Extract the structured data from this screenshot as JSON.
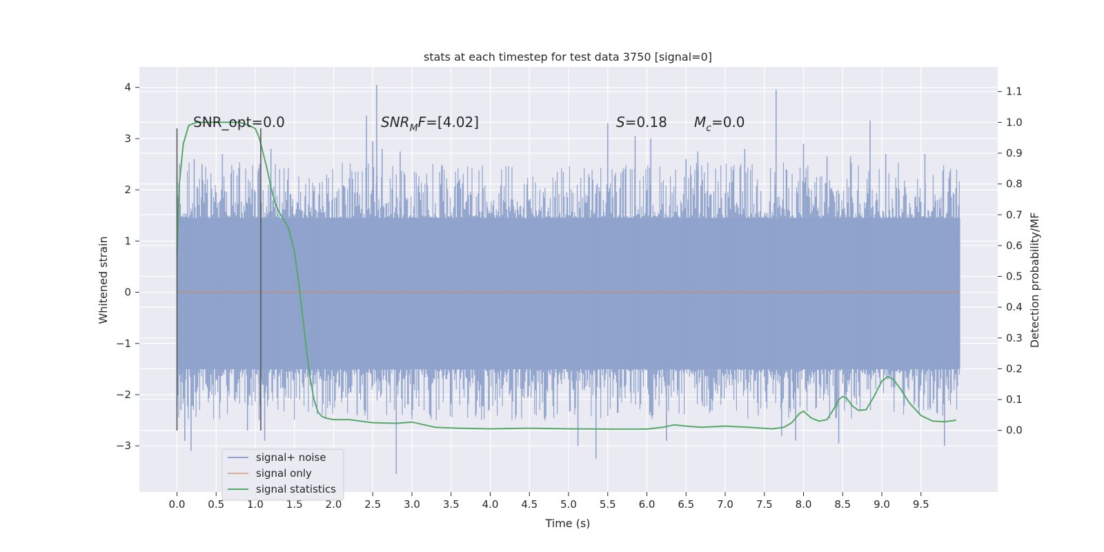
{
  "chart_data": {
    "type": "line",
    "title": "stats at each timestep for test data 3750 [signal=0]",
    "xlabel": "Time (s)",
    "ylabel": "Whitened strain",
    "y2label": "Detection probability/MF",
    "xlim": [
      -0.48,
      10.48
    ],
    "ylim": [
      -3.9,
      4.4
    ],
    "y2lim": [
      -0.2,
      1.18
    ],
    "x_ticks": [
      "0.0",
      "0.5",
      "1.0",
      "1.5",
      "2.0",
      "2.5",
      "3.0",
      "3.5",
      "4.0",
      "4.5",
      "5.0",
      "5.5",
      "6.0",
      "6.5",
      "7.0",
      "7.5",
      "8.0",
      "8.5",
      "9.0",
      "9.5"
    ],
    "y_ticks": [
      "4",
      "3",
      "2",
      "1",
      "0",
      "−1",
      "−2",
      "−3"
    ],
    "y2_ticks": [
      "1.1",
      "1.0",
      "0.9",
      "0.8",
      "0.7",
      "0.6",
      "0.5",
      "0.4",
      "0.3",
      "0.2",
      "0.1",
      "0.0"
    ],
    "grid": true,
    "legend_position": "lower-left",
    "series": [
      {
        "name": "signal+ noise",
        "color": "#8fa3cc",
        "axis": "left",
        "x_range": [
          0.0,
          10.0
        ],
        "band_typical": [
          -1.5,
          1.45
        ],
        "spikes": [
          {
            "x": 0.0,
            "y": 2.25
          },
          {
            "x": 0.05,
            "y": -2.3
          },
          {
            "x": 0.1,
            "y": -2.9
          },
          {
            "x": 0.18,
            "y": -3.1
          },
          {
            "x": 0.22,
            "y": 2.6
          },
          {
            "x": 0.32,
            "y": 2.5
          },
          {
            "x": 0.58,
            "y": 2.7
          },
          {
            "x": 0.9,
            "y": -2.7
          },
          {
            "x": 1.05,
            "y": -2.5
          },
          {
            "x": 1.2,
            "y": 2.8
          },
          {
            "x": 1.12,
            "y": -2.9
          },
          {
            "x": 2.3,
            "y": -2.4
          },
          {
            "x": 2.42,
            "y": 3.45
          },
          {
            "x": 2.5,
            "y": 2.95
          },
          {
            "x": 2.55,
            "y": 4.05
          },
          {
            "x": 2.62,
            "y": 2.8
          },
          {
            "x": 2.8,
            "y": -3.55
          },
          {
            "x": 2.85,
            "y": 2.75
          },
          {
            "x": 3.0,
            "y": -2.4
          },
          {
            "x": 4.7,
            "y": -2.5
          },
          {
            "x": 5.12,
            "y": -3.0
          },
          {
            "x": 5.35,
            "y": -3.25
          },
          {
            "x": 5.5,
            "y": 3.3
          },
          {
            "x": 5.85,
            "y": 3.05
          },
          {
            "x": 6.05,
            "y": 3.0
          },
          {
            "x": 6.25,
            "y": -2.9
          },
          {
            "x": 6.5,
            "y": 2.6
          },
          {
            "x": 6.65,
            "y": 2.75
          },
          {
            "x": 7.25,
            "y": 2.8
          },
          {
            "x": 7.65,
            "y": 3.95
          },
          {
            "x": 7.72,
            "y": -2.8
          },
          {
            "x": 7.9,
            "y": -2.9
          },
          {
            "x": 8.0,
            "y": 2.9
          },
          {
            "x": 8.3,
            "y": 2.65
          },
          {
            "x": 8.45,
            "y": -2.95
          },
          {
            "x": 8.6,
            "y": 2.65
          },
          {
            "x": 8.85,
            "y": 3.35
          },
          {
            "x": 9.05,
            "y": 2.7
          },
          {
            "x": 9.55,
            "y": 2.7
          },
          {
            "x": 9.8,
            "y": -3.0
          }
        ]
      },
      {
        "name": "signal only",
        "color": "#dd8452",
        "axis": "left",
        "x": [
          0.0,
          10.0
        ],
        "y": [
          0.0,
          0.0
        ]
      },
      {
        "name": "signal statistics",
        "color": "#55a868",
        "axis": "right",
        "x": [
          0.0,
          0.03,
          0.08,
          0.15,
          0.25,
          0.4,
          0.6,
          0.8,
          0.92,
          1.0,
          1.05,
          1.1,
          1.15,
          1.2,
          1.25,
          1.3,
          1.35,
          1.42,
          1.5,
          1.55,
          1.6,
          1.65,
          1.7,
          1.75,
          1.8,
          1.85,
          1.9,
          2.0,
          2.2,
          2.5,
          2.8,
          3.0,
          3.3,
          3.6,
          4.0,
          4.5,
          5.0,
          5.5,
          6.0,
          6.2,
          6.35,
          6.5,
          6.7,
          7.0,
          7.3,
          7.6,
          7.75,
          7.85,
          7.95,
          8.0,
          8.1,
          8.2,
          8.3,
          8.4,
          8.45,
          8.5,
          8.55,
          8.62,
          8.7,
          8.8,
          8.9,
          9.0,
          9.08,
          9.15,
          9.25,
          9.35,
          9.5,
          9.65,
          9.8,
          9.95
        ],
        "y": [
          0.57,
          0.8,
          0.93,
          0.99,
          1.0,
          1.0,
          1.0,
          1.0,
          0.99,
          0.98,
          0.95,
          0.9,
          0.85,
          0.79,
          0.74,
          0.71,
          0.69,
          0.66,
          0.58,
          0.49,
          0.38,
          0.27,
          0.17,
          0.1,
          0.06,
          0.045,
          0.04,
          0.035,
          0.035,
          0.025,
          0.023,
          0.027,
          0.01,
          0.007,
          0.005,
          0.007,
          0.005,
          0.004,
          0.004,
          0.01,
          0.018,
          0.014,
          0.01,
          0.014,
          0.01,
          0.005,
          0.01,
          0.025,
          0.055,
          0.062,
          0.04,
          0.03,
          0.035,
          0.075,
          0.1,
          0.11,
          0.105,
          0.08,
          0.065,
          0.067,
          0.11,
          0.16,
          0.175,
          0.165,
          0.13,
          0.09,
          0.048,
          0.03,
          0.028,
          0.033
        ]
      }
    ],
    "vlines": [
      {
        "x": 0.0,
        "y_range": [
          -2.7,
          3.2
        ],
        "color": "#555555"
      },
      {
        "x": 1.07,
        "y_range": [
          -2.7,
          3.2
        ],
        "color": "#555555"
      }
    ],
    "annotations": [
      {
        "id": "snr-opt",
        "text": "SNR_opt=0.0"
      },
      {
        "id": "snr-mf",
        "text_main": "SNR",
        "text_sub": "M",
        "text_after": "F=[4.02]"
      },
      {
        "id": "s-value",
        "text_italic": "S",
        "text_after": "=0.18"
      },
      {
        "id": "mc-value",
        "text_italic": "M",
        "text_sub": "c",
        "text_after": "=0.0"
      }
    ]
  }
}
